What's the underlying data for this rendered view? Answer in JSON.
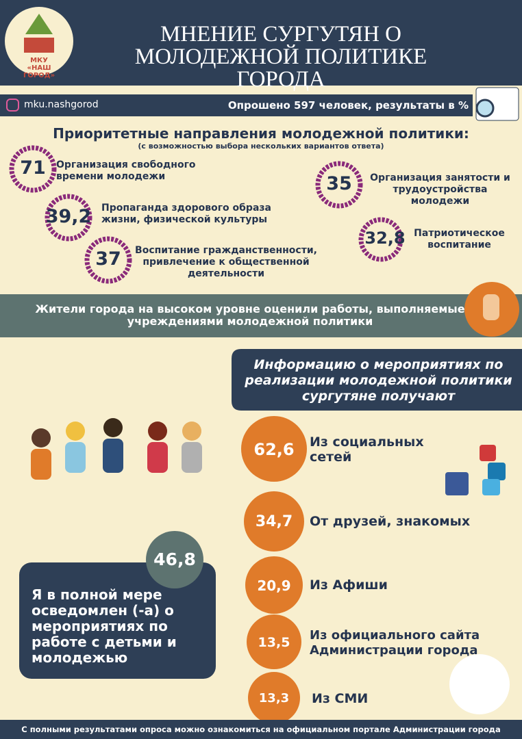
{
  "header": {
    "logo_lines": [
      "МКУ",
      "«НАШ ГОРОД»"
    ],
    "title_lines": [
      "МНЕНИЕ СУРГУТЯН О",
      "МОЛОДЕЖНОЙ ПОЛИТИКЕ ГОРОДА"
    ]
  },
  "info_bar": {
    "instagram": "mku.nashgorod",
    "survey": "Опрошено 597 человек, результаты в %"
  },
  "priorities": {
    "title": "Приоритетные направления молодежной политики:",
    "subtitle": "(с возможностью выбора нескольких вариантов ответа)",
    "items": [
      {
        "value": "71",
        "label": "Организация свободного времени молодежи"
      },
      {
        "value": "39,2",
        "label": "Пропаганда здорового образа жизни, физической культуры"
      },
      {
        "value": "37",
        "label": "Воспитание гражданственности, привлечение к общественной деятельности"
      },
      {
        "value": "35",
        "label": "Организация занятости и трудоустройства молодежи"
      },
      {
        "value": "32,8",
        "label": "Патриотическое воспитание"
      }
    ]
  },
  "banner": "Жители города на высоком уровне оценили работы, выполняемые учреждениями молодежной политики",
  "sources": {
    "title": "Информацию о мероприятиях по реализации молодежной политики сургутяне получают",
    "items": [
      {
        "value": "62,6",
        "label": "Из социальных сетей"
      },
      {
        "value": "34,7",
        "label": "От друзей, знакомых"
      },
      {
        "value": "20,9",
        "label": "Из Афиши"
      },
      {
        "value": "13,5",
        "label": "Из официального сайта Администрации города"
      },
      {
        "value": "13,3",
        "label": "Из СМИ"
      }
    ]
  },
  "awareness": {
    "value": "46,8",
    "label": "Я в полной мере осведомлен (-а) о мероприятиях по работе с детьми и молодежью"
  },
  "footer": "С полными результатами опроса можно ознакомиться на официальном портале Администрации города"
}
